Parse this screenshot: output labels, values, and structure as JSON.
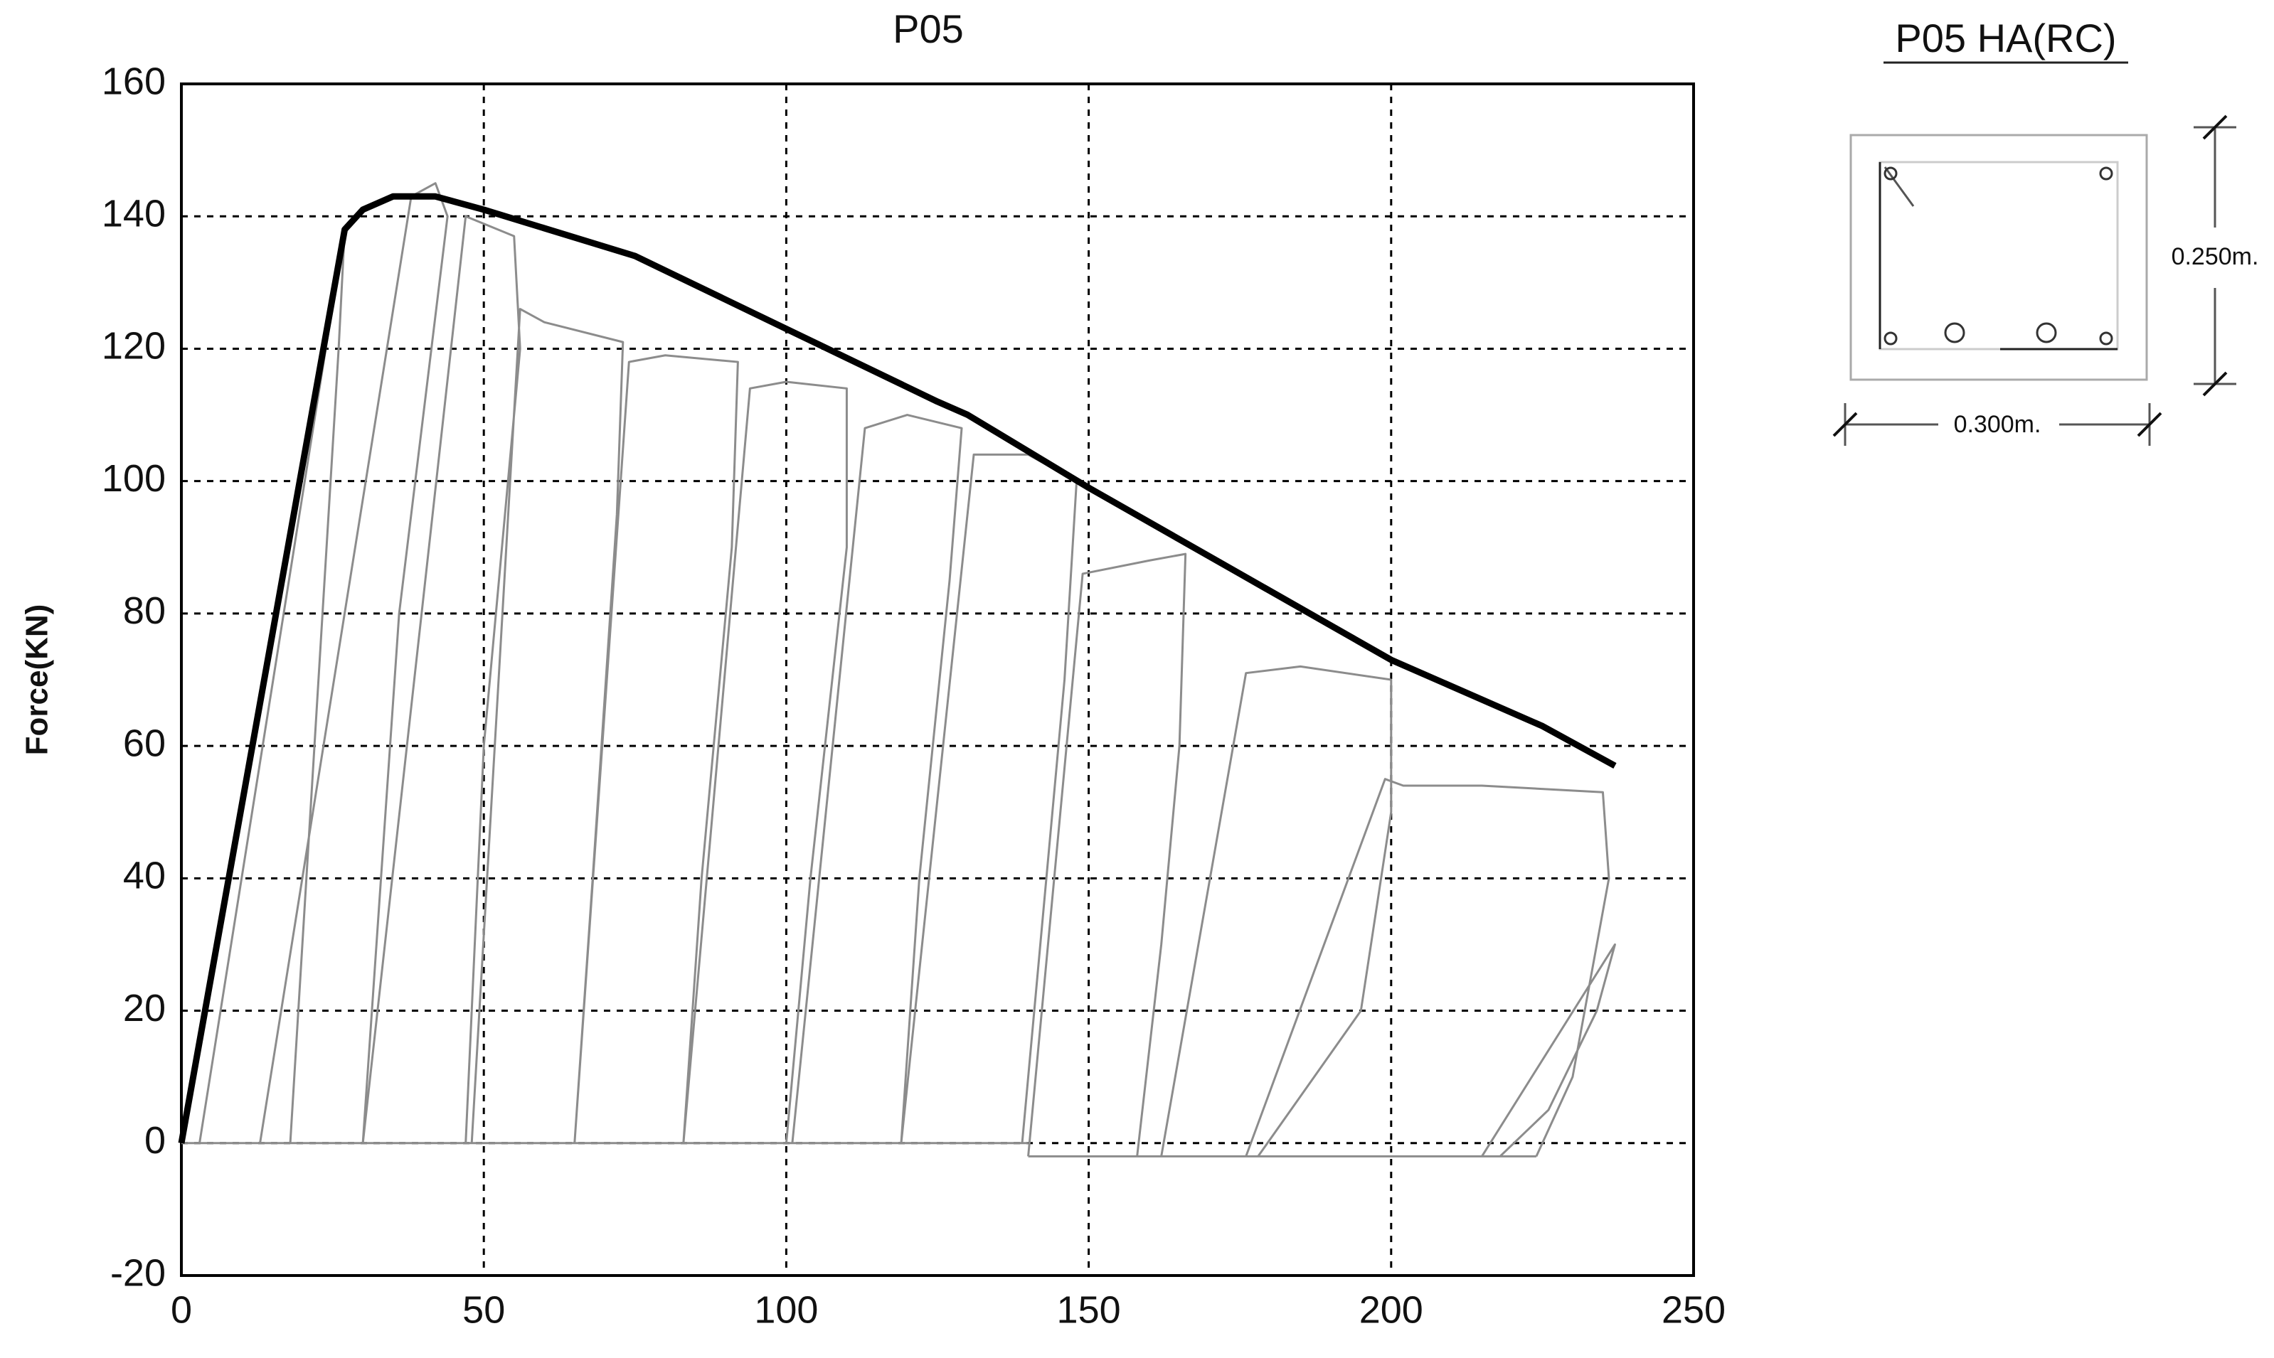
{
  "chart_data": {
    "type": "line",
    "title": "P05",
    "y_label": "Force(KN)",
    "xlim": [
      0,
      250
    ],
    "xticks": [
      0,
      50,
      100,
      150,
      200,
      250
    ],
    "ylim": [
      -20,
      160
    ],
    "yticks": [
      -20,
      0,
      20,
      40,
      60,
      80,
      100,
      120,
      140,
      160
    ],
    "grid": true,
    "series": [
      {
        "color": "#8c8c8c",
        "width": 3,
        "x": [
          0,
          140,
          null,
          140,
          224,
          null,
          3,
          27,
          26,
          18,
          null,
          13,
          38,
          42,
          44,
          36,
          30,
          null,
          30,
          47,
          55,
          56,
          50,
          47,
          null,
          48,
          56,
          60,
          73,
          72,
          68,
          65,
          null,
          65,
          74,
          80,
          92,
          91,
          86,
          83,
          null,
          83,
          94,
          100,
          110,
          110,
          104,
          100,
          null,
          101,
          113,
          120,
          129,
          127,
          122,
          119,
          null,
          119,
          131,
          140,
          148,
          146,
          142,
          139,
          null,
          140,
          149,
          160,
          166,
          165,
          162,
          158,
          null,
          162,
          176,
          185,
          200,
          200,
          195,
          178,
          null,
          176,
          199,
          202,
          215,
          235,
          236,
          230,
          224,
          null,
          215,
          237,
          234,
          226,
          218
        ],
        "values": [
          0,
          0,
          null,
          -2,
          -2,
          null,
          0,
          138,
          120,
          0,
          null,
          0,
          143,
          145,
          140,
          80,
          0,
          null,
          0,
          140,
          137,
          120,
          60,
          0,
          null,
          0,
          126,
          124,
          121,
          95,
          40,
          0,
          null,
          0,
          118,
          119,
          118,
          90,
          40,
          0,
          null,
          0,
          114,
          115,
          114,
          90,
          40,
          0,
          null,
          0,
          108,
          110,
          108,
          85,
          40,
          0,
          null,
          0,
          104,
          104,
          100,
          70,
          30,
          0,
          null,
          -2,
          86,
          88,
          89,
          60,
          30,
          -2,
          null,
          -2,
          71,
          72,
          70,
          50,
          20,
          -2,
          null,
          -2,
          55,
          54,
          54,
          53,
          40,
          10,
          -2,
          null,
          -2,
          30,
          20,
          5,
          -2
        ]
      },
      {
        "color": "#000000",
        "width": 9,
        "x": [
          0,
          27,
          30,
          35,
          42,
          50,
          75,
          100,
          125,
          130,
          150,
          175,
          200,
          225,
          237
        ],
        "values": [
          0,
          138,
          141,
          143,
          143,
          141,
          134,
          123,
          112,
          110,
          99,
          86,
          73,
          63,
          57
        ]
      }
    ]
  },
  "diagram": {
    "title": "P05  HA(RC)",
    "height_label": "0.250m.",
    "width_label": "0.300m."
  }
}
